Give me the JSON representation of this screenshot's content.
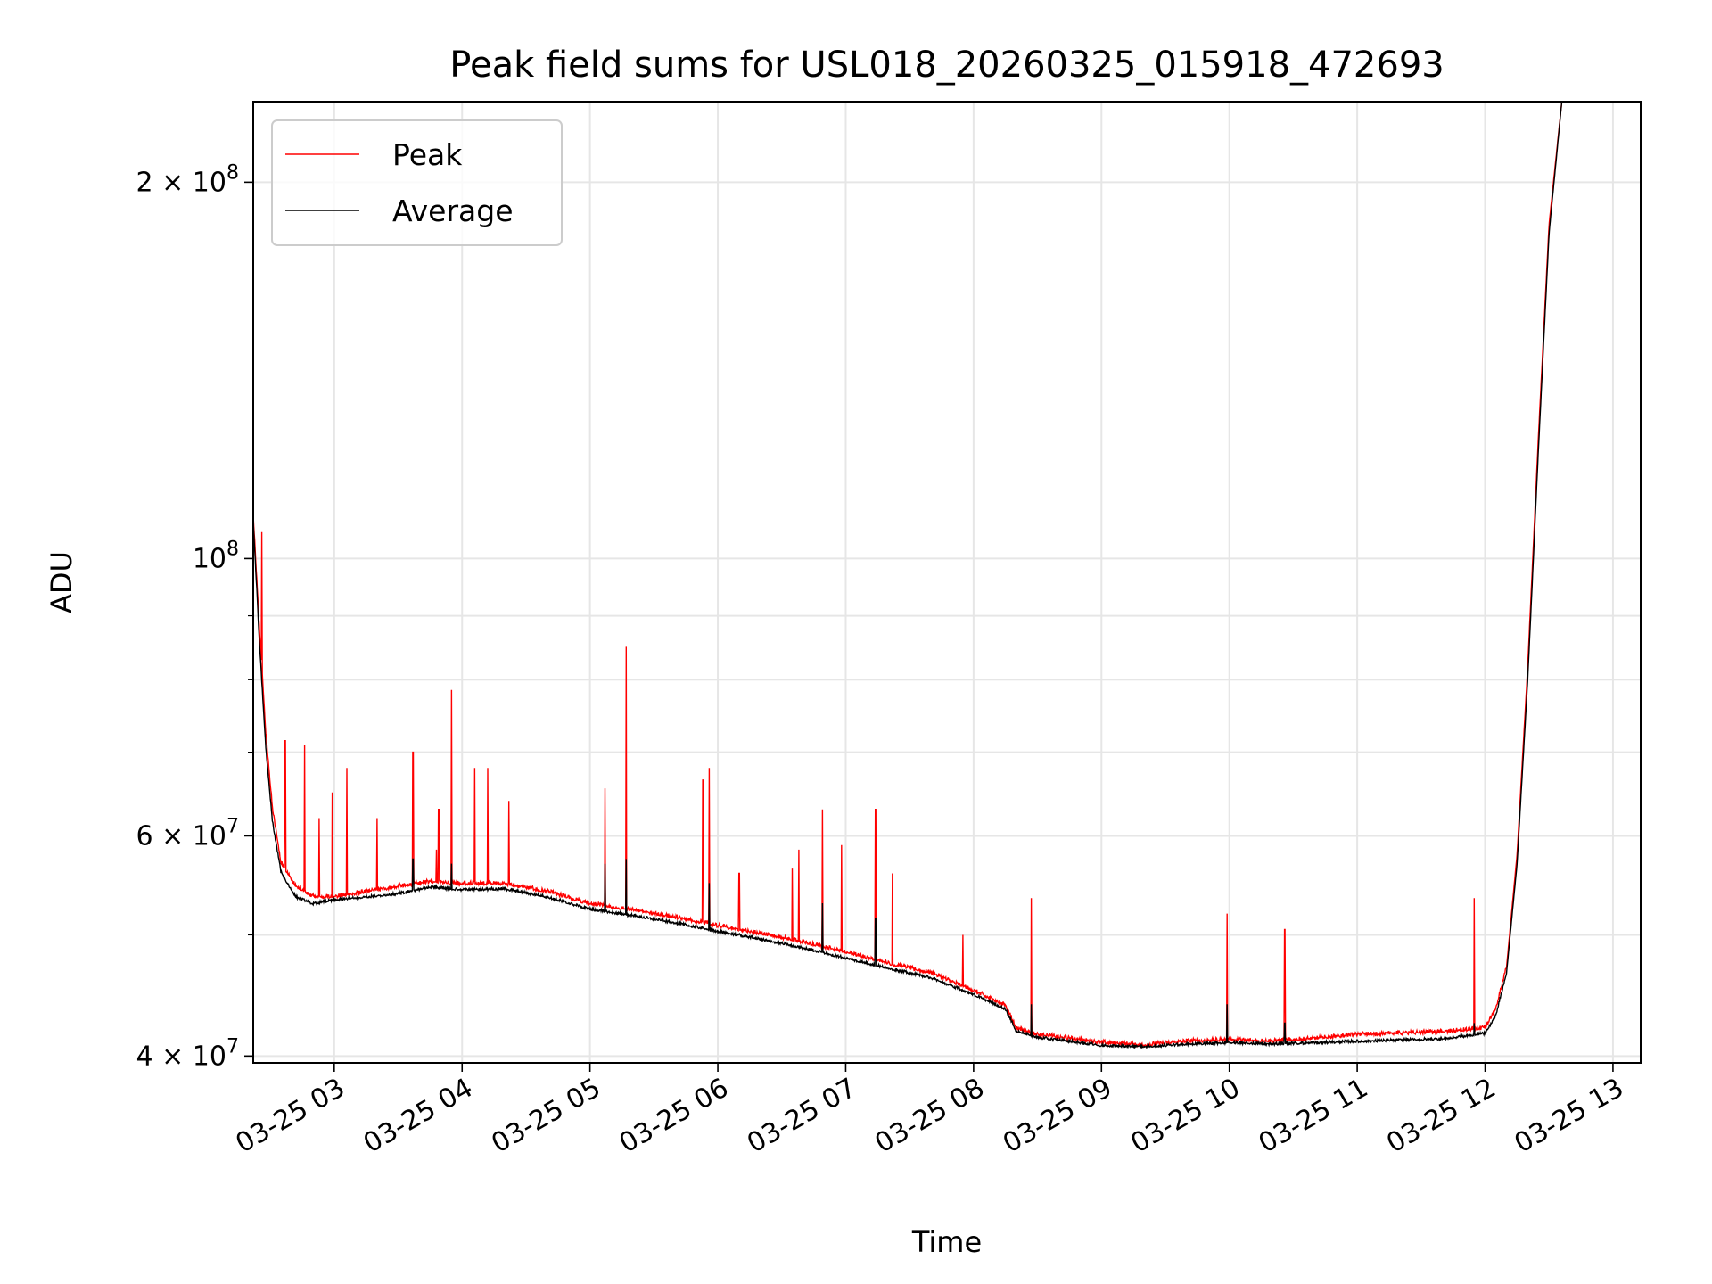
{
  "chart_data": {
    "type": "line",
    "title": "Peak field sums for USL018_20260325_015918_472693",
    "xlabel": "Time",
    "ylabel": "ADU",
    "y_scale": "log",
    "ylim": [
      39500000,
      232000000
    ],
    "xlim": [
      "2026-03-25 02:22",
      "2026-03-25 13:13"
    ],
    "x_ticks": [
      "2026-03-25 03:00",
      "2026-03-25 04:00",
      "2026-03-25 05:00",
      "2026-03-25 06:00",
      "2026-03-25 07:00",
      "2026-03-25 08:00",
      "2026-03-25 09:00",
      "2026-03-25 10:00",
      "2026-03-25 11:00",
      "2026-03-25 12:00",
      "2026-03-25 13:00"
    ],
    "x_tick_labels": [
      "03-25 03",
      "03-25 04",
      "03-25 05",
      "03-25 06",
      "03-25 07",
      "03-25 08",
      "03-25 09",
      "03-25 10",
      "03-25 11",
      "03-25 12",
      "03-25 13"
    ],
    "y_major_ticks": [
      {
        "value": 40000000,
        "mantissa": "4",
        "exponent": "7"
      },
      {
        "value": 60000000,
        "mantissa": "6",
        "exponent": "7"
      },
      {
        "value": 100000000,
        "mantissa": "",
        "exponent": "8"
      },
      {
        "value": 200000000,
        "mantissa": "2",
        "exponent": "8"
      }
    ],
    "y_minor_ticks": [
      50000000,
      70000000,
      80000000,
      90000000
    ],
    "grid": true,
    "legend": {
      "position": "top-left"
    },
    "series": [
      {
        "name": "Peak",
        "color": "#ff0000",
        "points": [
          [
            "2026-03-25 02:22",
            108000000
          ],
          [
            "2026-03-25 02:25",
            87000000
          ],
          [
            "2026-03-25 02:28",
            72000000
          ],
          [
            "2026-03-25 02:31",
            63000000
          ],
          [
            "2026-03-25 02:35",
            57000000
          ],
          [
            "2026-03-25 02:42",
            54500000
          ],
          [
            "2026-03-25 02:50",
            53500000
          ],
          [
            "2026-03-25 03:00",
            53500000
          ],
          [
            "2026-03-25 03:15",
            54000000
          ],
          [
            "2026-03-25 03:30",
            54500000
          ],
          [
            "2026-03-25 03:45",
            55000000
          ],
          [
            "2026-03-25 04:00",
            54800000
          ],
          [
            "2026-03-25 04:20",
            54800000
          ],
          [
            "2026-03-25 04:40",
            54000000
          ],
          [
            "2026-03-25 05:00",
            52800000
          ],
          [
            "2026-03-25 05:20",
            52200000
          ],
          [
            "2026-03-25 05:40",
            51500000
          ],
          [
            "2026-03-25 06:00",
            50700000
          ],
          [
            "2026-03-25 06:20",
            50000000
          ],
          [
            "2026-03-25 06:40",
            49200000
          ],
          [
            "2026-03-25 07:00",
            48300000
          ],
          [
            "2026-03-25 07:20",
            47300000
          ],
          [
            "2026-03-25 07:40",
            46500000
          ],
          [
            "2026-03-25 08:00",
            45000000
          ],
          [
            "2026-03-25 08:15",
            43800000
          ],
          [
            "2026-03-25 08:20",
            42000000
          ],
          [
            "2026-03-25 08:30",
            41500000
          ],
          [
            "2026-03-25 08:45",
            41200000
          ],
          [
            "2026-03-25 09:00",
            40900000
          ],
          [
            "2026-03-25 09:20",
            40700000
          ],
          [
            "2026-03-25 09:40",
            41000000
          ],
          [
            "2026-03-25 10:00",
            41100000
          ],
          [
            "2026-03-25 10:20",
            41000000
          ],
          [
            "2026-03-25 10:40",
            41200000
          ],
          [
            "2026-03-25 11:00",
            41500000
          ],
          [
            "2026-03-25 11:20",
            41600000
          ],
          [
            "2026-03-25 11:40",
            41700000
          ],
          [
            "2026-03-25 12:00",
            42000000
          ],
          [
            "2026-03-25 12:05",
            43500000
          ],
          [
            "2026-03-25 12:10",
            47000000
          ],
          [
            "2026-03-25 12:15",
            58000000
          ],
          [
            "2026-03-25 12:20",
            82000000
          ],
          [
            "2026-03-25 12:25",
            125000000
          ],
          [
            "2026-03-25 12:30",
            185000000
          ],
          [
            "2026-03-25 12:36",
            232000000
          ]
        ],
        "spikes": [
          [
            "2026-03-25 02:26",
            105000000
          ],
          [
            "2026-03-25 02:37",
            71500000
          ],
          [
            "2026-03-25 02:46",
            71000000
          ],
          [
            "2026-03-25 02:53",
            62000000
          ],
          [
            "2026-03-25 02:59",
            65000000
          ],
          [
            "2026-03-25 03:06",
            68000000
          ],
          [
            "2026-03-25 03:20",
            62000000
          ],
          [
            "2026-03-25 03:37",
            70000000
          ],
          [
            "2026-03-25 03:48",
            58500000
          ],
          [
            "2026-03-25 03:49",
            63000000
          ],
          [
            "2026-03-25 03:55",
            78500000
          ],
          [
            "2026-03-25 04:06",
            68000000
          ],
          [
            "2026-03-25 04:12",
            68000000
          ],
          [
            "2026-03-25 04:22",
            64000000
          ],
          [
            "2026-03-25 05:07",
            65500000
          ],
          [
            "2026-03-25 05:17",
            85000000
          ],
          [
            "2026-03-25 05:53",
            66500000
          ],
          [
            "2026-03-25 05:56",
            68000000
          ],
          [
            "2026-03-25 06:10",
            56000000
          ],
          [
            "2026-03-25 06:35",
            56500000
          ],
          [
            "2026-03-25 06:38",
            58500000
          ],
          [
            "2026-03-25 06:49",
            63000000
          ],
          [
            "2026-03-25 06:58",
            59000000
          ],
          [
            "2026-03-25 07:14",
            63000000
          ],
          [
            "2026-03-25 07:22",
            56000000
          ],
          [
            "2026-03-25 07:55",
            50000000
          ],
          [
            "2026-03-25 08:27",
            53500000
          ],
          [
            "2026-03-25 09:59",
            52000000
          ],
          [
            "2026-03-25 10:26",
            50500000
          ],
          [
            "2026-03-25 11:55",
            53500000
          ]
        ]
      },
      {
        "name": "Average",
        "color": "#000000",
        "points": [
          [
            "2026-03-25 02:22",
            107000000
          ],
          [
            "2026-03-25 02:25",
            85000000
          ],
          [
            "2026-03-25 02:28",
            70000000
          ],
          [
            "2026-03-25 02:31",
            61500000
          ],
          [
            "2026-03-25 02:35",
            56000000
          ],
          [
            "2026-03-25 02:42",
            53500000
          ],
          [
            "2026-03-25 02:50",
            52800000
          ],
          [
            "2026-03-25 03:00",
            53200000
          ],
          [
            "2026-03-25 03:15",
            53500000
          ],
          [
            "2026-03-25 03:30",
            53800000
          ],
          [
            "2026-03-25 03:45",
            54500000
          ],
          [
            "2026-03-25 04:00",
            54200000
          ],
          [
            "2026-03-25 04:20",
            54300000
          ],
          [
            "2026-03-25 04:40",
            53500000
          ],
          [
            "2026-03-25 05:00",
            52300000
          ],
          [
            "2026-03-25 05:20",
            51700000
          ],
          [
            "2026-03-25 05:40",
            51000000
          ],
          [
            "2026-03-25 06:00",
            50200000
          ],
          [
            "2026-03-25 06:20",
            49500000
          ],
          [
            "2026-03-25 06:40",
            48700000
          ],
          [
            "2026-03-25 07:00",
            47800000
          ],
          [
            "2026-03-25 07:20",
            46900000
          ],
          [
            "2026-03-25 07:40",
            46100000
          ],
          [
            "2026-03-25 08:00",
            44700000
          ],
          [
            "2026-03-25 08:15",
            43500000
          ],
          [
            "2026-03-25 08:20",
            41800000
          ],
          [
            "2026-03-25 08:30",
            41300000
          ],
          [
            "2026-03-25 08:45",
            41000000
          ],
          [
            "2026-03-25 09:00",
            40700000
          ],
          [
            "2026-03-25 09:20",
            40600000
          ],
          [
            "2026-03-25 09:40",
            40800000
          ],
          [
            "2026-03-25 10:00",
            40900000
          ],
          [
            "2026-03-25 10:20",
            40800000
          ],
          [
            "2026-03-25 10:40",
            40900000
          ],
          [
            "2026-03-25 11:00",
            41000000
          ],
          [
            "2026-03-25 11:20",
            41100000
          ],
          [
            "2026-03-25 11:40",
            41200000
          ],
          [
            "2026-03-25 12:00",
            41600000
          ],
          [
            "2026-03-25 12:05",
            43000000
          ],
          [
            "2026-03-25 12:10",
            46500000
          ],
          [
            "2026-03-25 12:15",
            57000000
          ],
          [
            "2026-03-25 12:20",
            80000000
          ],
          [
            "2026-03-25 12:25",
            122000000
          ],
          [
            "2026-03-25 12:30",
            182000000
          ],
          [
            "2026-03-25 12:36",
            232000000
          ]
        ],
        "spikes": [
          [
            "2026-03-25 03:37",
            57500000
          ],
          [
            "2026-03-25 03:55",
            57000000
          ],
          [
            "2026-03-25 05:07",
            57000000
          ],
          [
            "2026-03-25 05:17",
            57500000
          ],
          [
            "2026-03-25 05:56",
            55000000
          ],
          [
            "2026-03-25 06:49",
            53000000
          ],
          [
            "2026-03-25 07:14",
            51500000
          ],
          [
            "2026-03-25 08:27",
            44000000
          ],
          [
            "2026-03-25 09:59",
            44000000
          ],
          [
            "2026-03-25 10:26",
            42500000
          ],
          [
            "2026-03-25 11:55",
            42500000
          ]
        ]
      }
    ]
  }
}
